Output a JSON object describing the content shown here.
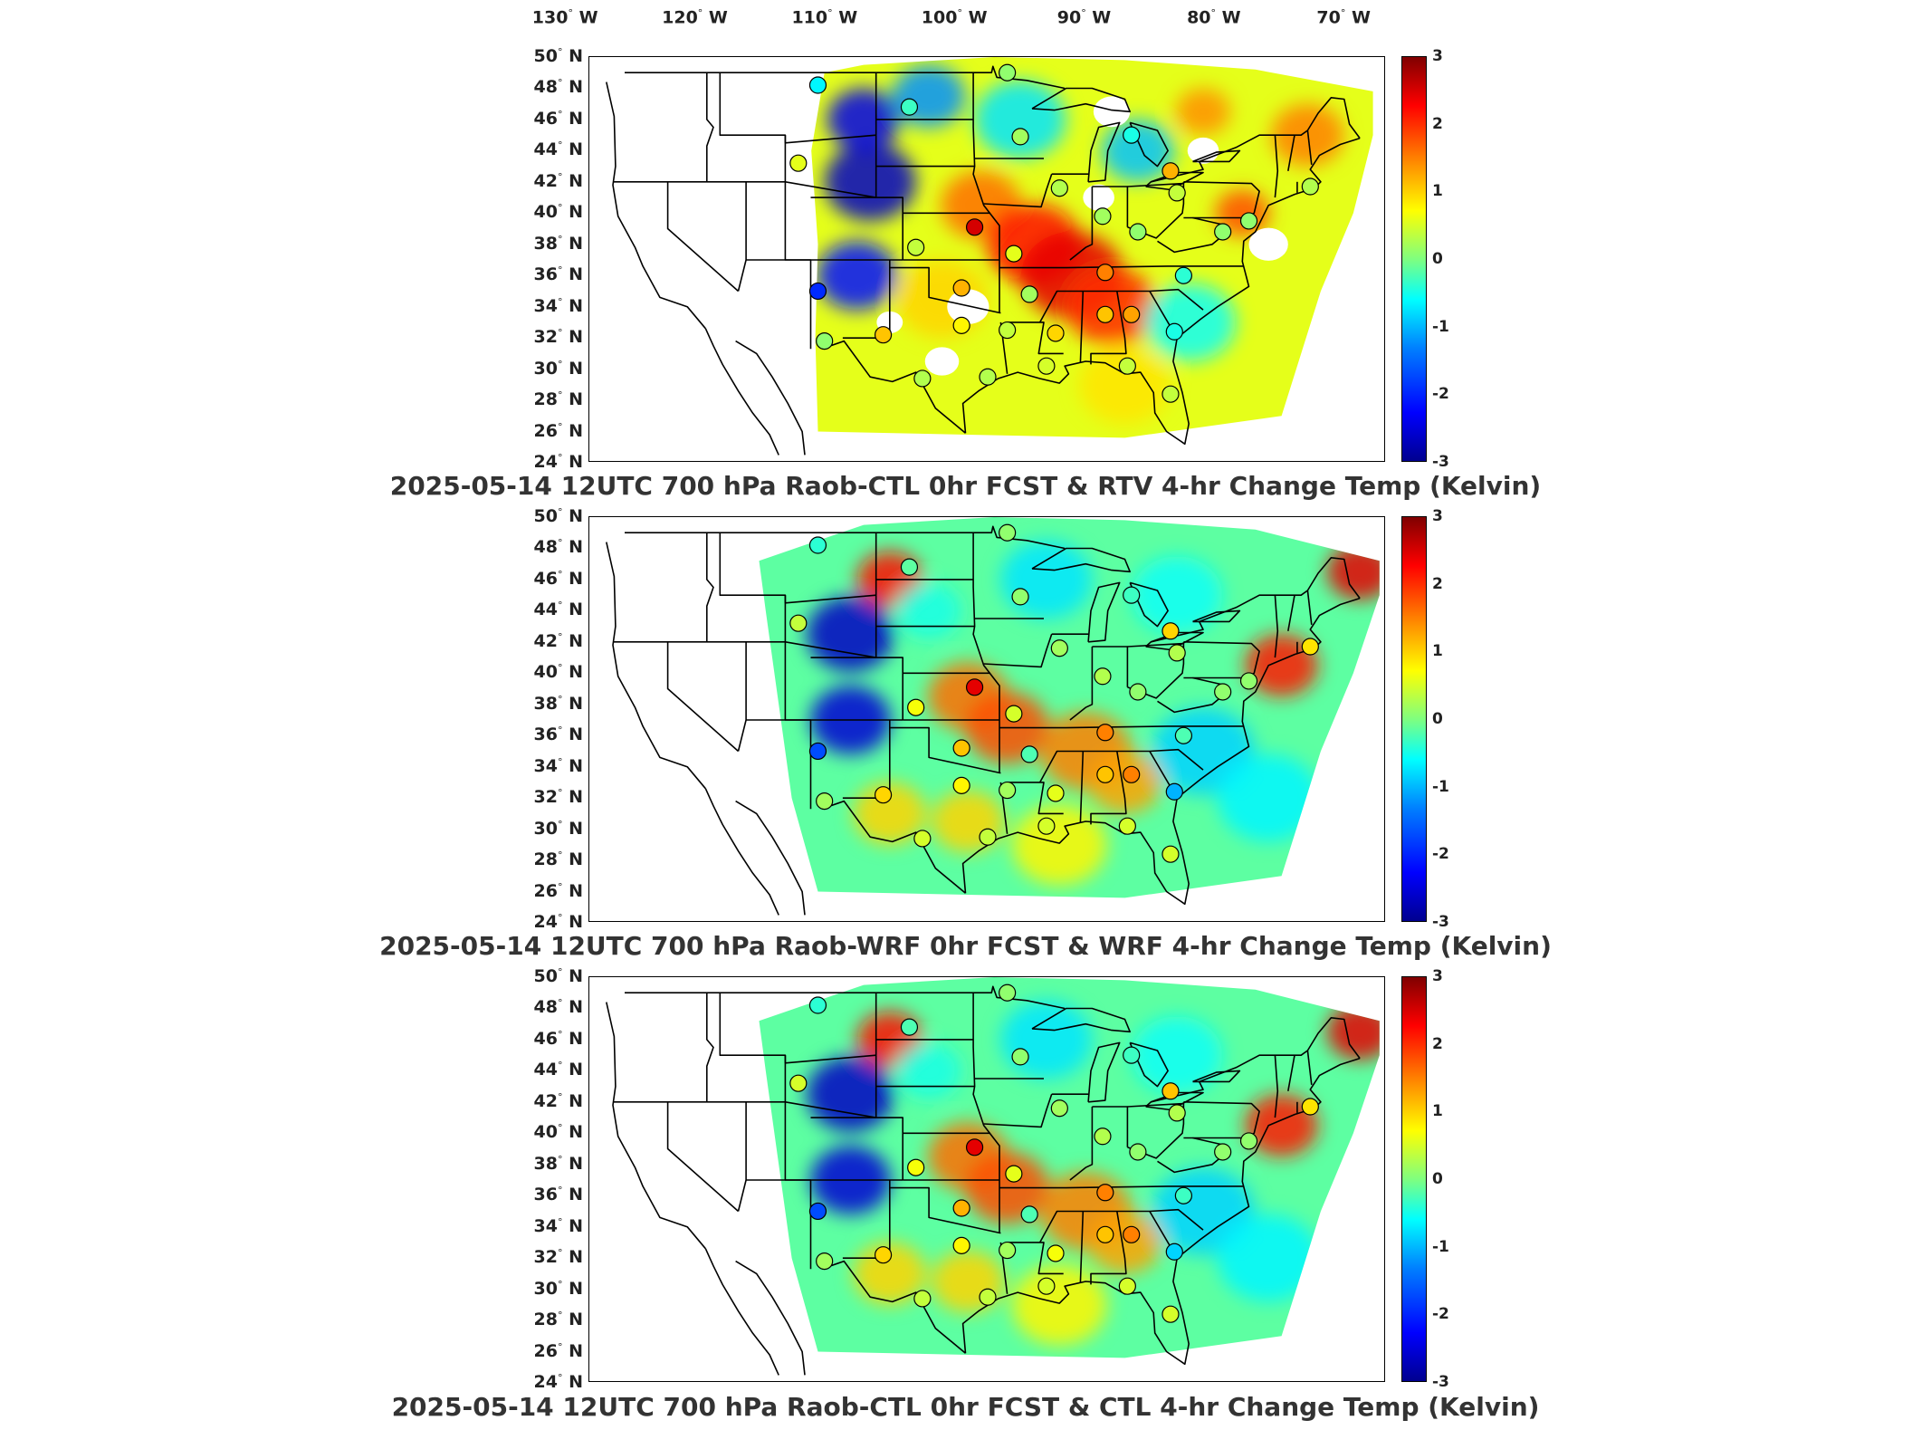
{
  "lon_labels": [
    {
      "deg": "130",
      "dir": "W"
    },
    {
      "deg": "120",
      "dir": "W"
    },
    {
      "deg": "110",
      "dir": "W"
    },
    {
      "deg": "100",
      "dir": "W"
    },
    {
      "deg": "90",
      "dir": "W"
    },
    {
      "deg": "80",
      "dir": "W"
    },
    {
      "deg": "70",
      "dir": "W"
    }
  ],
  "lat_labels": [
    {
      "deg": "50",
      "dir": "N"
    },
    {
      "deg": "48",
      "dir": "N"
    },
    {
      "deg": "46",
      "dir": "N"
    },
    {
      "deg": "44",
      "dir": "N"
    },
    {
      "deg": "42",
      "dir": "N"
    },
    {
      "deg": "40",
      "dir": "N"
    },
    {
      "deg": "38",
      "dir": "N"
    },
    {
      "deg": "36",
      "dir": "N"
    },
    {
      "deg": "34",
      "dir": "N"
    },
    {
      "deg": "32",
      "dir": "N"
    },
    {
      "deg": "30",
      "dir": "N"
    },
    {
      "deg": "28",
      "dir": "N"
    },
    {
      "deg": "26",
      "dir": "N"
    },
    {
      "deg": "24",
      "dir": "N"
    }
  ],
  "colorbar": {
    "ticks": [
      "3",
      "2",
      "1",
      "0",
      "-1",
      "-2",
      "-3"
    ],
    "range": [
      -3,
      3
    ],
    "colormap": "jet"
  },
  "panels": [
    {
      "title": "2025-05-14 12UTC 700 hPa Raob-CTL 0hr FCST & RTV 4-hr Change Temp (Kelvin)"
    },
    {
      "title": "2025-05-14 12UTC 700 hPa Raob-WRF 0hr FCST & WRF 4-hr Change Temp (Kelvin)"
    },
    {
      "title": "2025-05-14 12UTC 700 hPa Raob-CTL 0hr FCST & CTL 4-hr Change Temp (Kelvin)"
    }
  ],
  "raob_stations": [
    {
      "lon": -108.5,
      "lat": 48.2,
      "values": [
        -0.8,
        -0.5,
        -0.5
      ]
    },
    {
      "lon": -101.5,
      "lat": 46.8,
      "values": [
        -0.4,
        -0.2,
        -0.3
      ]
    },
    {
      "lon": -110.0,
      "lat": 43.2,
      "values": [
        0.6,
        0.4,
        0.5
      ]
    },
    {
      "lon": -93.0,
      "lat": 44.9,
      "values": [
        0.2,
        0.1,
        0.1
      ]
    },
    {
      "lon": -84.5,
      "lat": 45.0,
      "values": [
        -0.6,
        -0.4,
        -0.4
      ]
    },
    {
      "lon": -81.5,
      "lat": 42.7,
      "values": [
        1.2,
        1.0,
        1.1
      ]
    },
    {
      "lon": -90.0,
      "lat": 41.6,
      "values": [
        0.3,
        0.2,
        0.2
      ]
    },
    {
      "lon": -96.5,
      "lat": 39.1,
      "values": [
        2.5,
        2.4,
        2.4
      ]
    },
    {
      "lon": -101.0,
      "lat": 37.8,
      "values": [
        0.4,
        0.7,
        0.7
      ]
    },
    {
      "lon": -86.7,
      "lat": 39.8,
      "values": [
        0.2,
        0.3,
        0.3
      ]
    },
    {
      "lon": -84.0,
      "lat": 38.8,
      "values": [
        0.1,
        0.1,
        0.1
      ]
    },
    {
      "lon": -77.5,
      "lat": 38.8,
      "values": [
        0.1,
        0.1,
        0.1
      ]
    },
    {
      "lon": -93.5,
      "lat": 37.4,
      "values": [
        0.6,
        0.5,
        0.6
      ]
    },
    {
      "lon": -97.5,
      "lat": 35.2,
      "values": [
        1.2,
        1.1,
        1.2
      ]
    },
    {
      "lon": -92.3,
      "lat": 34.8,
      "values": [
        0.2,
        -0.3,
        -0.3
      ]
    },
    {
      "lon": -86.5,
      "lat": 36.2,
      "values": [
        1.5,
        1.5,
        1.5
      ]
    },
    {
      "lon": -80.5,
      "lat": 36.0,
      "values": [
        -0.5,
        -0.3,
        -0.4
      ]
    },
    {
      "lon": -108.5,
      "lat": 35.0,
      "values": [
        -2.0,
        -1.8,
        -1.8
      ]
    },
    {
      "lon": -103.5,
      "lat": 32.2,
      "values": [
        1.1,
        1.0,
        1.0
      ]
    },
    {
      "lon": -97.5,
      "lat": 32.8,
      "values": [
        0.8,
        0.8,
        0.8
      ]
    },
    {
      "lon": -94.0,
      "lat": 32.5,
      "values": [
        0.4,
        0.2,
        0.2
      ]
    },
    {
      "lon": -90.3,
      "lat": 32.3,
      "values": [
        1.0,
        0.6,
        0.7
      ]
    },
    {
      "lon": -86.5,
      "lat": 33.5,
      "values": [
        1.1,
        1.1,
        1.1
      ]
    },
    {
      "lon": -84.5,
      "lat": 33.5,
      "values": [
        1.3,
        1.5,
        1.5
      ]
    },
    {
      "lon": -81.2,
      "lat": 32.4,
      "values": [
        -0.6,
        -1.2,
        -1.0
      ]
    },
    {
      "lon": -108.0,
      "lat": 31.8,
      "values": [
        0.1,
        0.2,
        0.2
      ]
    },
    {
      "lon": -100.5,
      "lat": 29.4,
      "values": [
        0.3,
        0.5,
        0.4
      ]
    },
    {
      "lon": -95.5,
      "lat": 29.5,
      "values": [
        0.3,
        0.4,
        0.4
      ]
    },
    {
      "lon": -91.0,
      "lat": 30.2,
      "values": [
        0.5,
        0.5,
        0.5
      ]
    },
    {
      "lon": -84.8,
      "lat": 30.2,
      "values": [
        0.4,
        0.5,
        0.5
      ]
    },
    {
      "lon": -81.5,
      "lat": 28.4,
      "values": [
        0.4,
        0.5,
        0.5
      ]
    },
    {
      "lon": -75.5,
      "lat": 39.5,
      "values": [
        0.1,
        0.1,
        0.1
      ]
    },
    {
      "lon": -70.8,
      "lat": 41.7,
      "values": [
        0.3,
        0.9,
        0.9
      ]
    },
    {
      "lon": -81.0,
      "lat": 41.3,
      "values": [
        0.4,
        0.3,
        0.3
      ]
    },
    {
      "lon": -94.0,
      "lat": 49.0,
      "values": [
        0.1,
        0.1,
        0.1
      ]
    }
  ]
}
